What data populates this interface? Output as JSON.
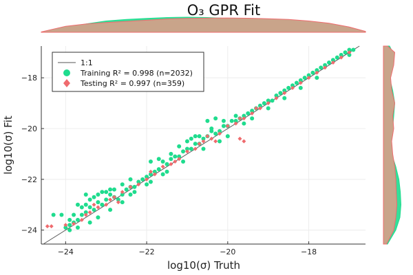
{
  "chart_data": {
    "type": "scatter",
    "title": "O₃ GPR Fit",
    "xlabel": "log10(σ) Truth",
    "ylabel": "log10(σ) Fit",
    "xlim": [
      -24.6,
      -16.6
    ],
    "ylim": [
      -24.55,
      -16.75
    ],
    "xticks": [
      -24,
      -22,
      -20,
      -18
    ],
    "yticks": [
      -24,
      -22,
      -20,
      -18
    ],
    "xtick_labels": [
      "−24",
      "−22",
      "−20",
      "−18"
    ],
    "ytick_labels": [
      "−24",
      "−22",
      "−20",
      "−18"
    ],
    "grid": true,
    "legend_position": "top-left",
    "legend": {
      "line_label": "1:1",
      "training_label": "Training  R² = 0.998 (n=2032)",
      "testing_label": "Testing   R² = 0.997 (n=359)"
    },
    "series": [
      {
        "name": "Training",
        "color": "#1fdc8e",
        "marker": "circle",
        "points": [
          [
            -24.0,
            -23.9
          ],
          [
            -23.9,
            -23.8
          ],
          [
            -23.8,
            -23.7
          ],
          [
            -23.7,
            -23.6
          ],
          [
            -23.6,
            -23.4
          ],
          [
            -23.5,
            -23.3
          ],
          [
            -23.4,
            -23.1
          ],
          [
            -23.3,
            -23.2
          ],
          [
            -23.2,
            -22.9
          ],
          [
            -23.1,
            -23.0
          ],
          [
            -23.0,
            -22.8
          ],
          [
            -22.9,
            -22.6
          ],
          [
            -22.8,
            -22.7
          ],
          [
            -22.7,
            -22.8
          ],
          [
            -22.6,
            -22.6
          ],
          [
            -22.5,
            -22.4
          ],
          [
            -22.4,
            -22.3
          ],
          [
            -22.3,
            -22.3
          ],
          [
            -22.2,
            -22.1
          ],
          [
            -22.1,
            -22.0
          ],
          [
            -22.0,
            -21.9
          ],
          [
            -21.9,
            -21.8
          ],
          [
            -21.8,
            -21.7
          ],
          [
            -21.7,
            -21.6
          ],
          [
            -21.6,
            -21.3
          ],
          [
            -21.5,
            -21.4
          ],
          [
            -21.4,
            -21.2
          ],
          [
            -21.3,
            -21.1
          ],
          [
            -21.2,
            -21.1
          ],
          [
            -21.1,
            -20.9
          ],
          [
            -21.0,
            -20.8
          ],
          [
            -20.9,
            -20.8
          ],
          [
            -20.8,
            -20.6
          ],
          [
            -20.7,
            -20.6
          ],
          [
            -20.6,
            -20.4
          ],
          [
            -20.5,
            -20.3
          ],
          [
            -20.4,
            -20.1
          ],
          [
            -20.3,
            -20.2
          ],
          [
            -20.2,
            -20.1
          ],
          [
            -20.1,
            -19.9
          ],
          [
            -20.0,
            -19.9
          ],
          [
            -19.9,
            -19.7
          ],
          [
            -19.8,
            -19.7
          ],
          [
            -19.7,
            -19.6
          ],
          [
            -19.6,
            -19.5
          ],
          [
            -19.5,
            -19.4
          ],
          [
            -19.4,
            -19.3
          ],
          [
            -19.3,
            -19.2
          ],
          [
            -19.2,
            -19.1
          ],
          [
            -19.1,
            -19.0
          ],
          [
            -19.0,
            -18.9
          ],
          [
            -18.9,
            -18.9
          ],
          [
            -18.8,
            -18.7
          ],
          [
            -18.7,
            -18.6
          ],
          [
            -18.6,
            -18.5
          ],
          [
            -18.5,
            -18.4
          ],
          [
            -18.4,
            -18.3
          ],
          [
            -18.3,
            -18.2
          ],
          [
            -18.2,
            -18.1
          ],
          [
            -18.1,
            -18.0
          ],
          [
            -18.0,
            -17.9
          ],
          [
            -17.9,
            -17.8
          ],
          [
            -17.8,
            -17.7
          ],
          [
            -17.7,
            -17.6
          ],
          [
            -17.6,
            -17.5
          ],
          [
            -17.5,
            -17.4
          ],
          [
            -17.4,
            -17.3
          ],
          [
            -17.3,
            -17.2
          ],
          [
            -17.2,
            -17.1
          ],
          [
            -17.1,
            -17.0
          ],
          [
            -17.0,
            -16.9
          ],
          [
            -16.9,
            -16.9
          ],
          [
            -24.1,
            -23.4
          ],
          [
            -23.9,
            -23.6
          ],
          [
            -23.8,
            -23.4
          ],
          [
            -23.6,
            -23.1
          ],
          [
            -23.5,
            -23.0
          ],
          [
            -23.3,
            -22.7
          ],
          [
            -23.2,
            -22.6
          ],
          [
            -23.0,
            -22.5
          ],
          [
            -22.8,
            -22.4
          ],
          [
            -22.6,
            -22.2
          ],
          [
            -22.4,
            -22.0
          ],
          [
            -21.9,
            -21.3
          ],
          [
            -21.4,
            -21.0
          ],
          [
            -21.0,
            -20.5
          ],
          [
            -20.8,
            -20.3
          ],
          [
            -20.5,
            -19.7
          ],
          [
            -20.3,
            -19.6
          ],
          [
            -20.1,
            -19.7
          ],
          [
            -19.8,
            -19.5
          ],
          [
            -23.9,
            -24.0
          ],
          [
            -23.7,
            -23.9
          ],
          [
            -23.4,
            -23.7
          ],
          [
            -23.2,
            -23.5
          ],
          [
            -22.9,
            -23.2
          ],
          [
            -22.6,
            -22.9
          ],
          [
            -22.3,
            -22.5
          ],
          [
            -21.9,
            -22.1
          ],
          [
            -21.6,
            -21.8
          ],
          [
            -21.1,
            -21.3
          ],
          [
            -20.6,
            -20.8
          ],
          [
            -20.0,
            -20.3
          ],
          [
            -19.6,
            -19.8
          ],
          [
            -19.0,
            -19.2
          ],
          [
            -18.2,
            -18.4
          ],
          [
            -23.7,
            -23.0
          ],
          [
            -23.4,
            -22.8
          ],
          [
            -23.1,
            -22.5
          ],
          [
            -22.9,
            -22.4
          ],
          [
            -21.7,
            -21.2
          ],
          [
            -21.2,
            -20.7
          ],
          [
            -20.9,
            -20.4
          ],
          [
            -20.7,
            -20.3
          ],
          [
            -20.4,
            -20.0
          ],
          [
            -24.3,
            -23.4
          ],
          [
            -23.5,
            -22.6
          ],
          [
            -22.4,
            -22.6
          ],
          [
            -22.0,
            -22.2
          ],
          [
            -21.5,
            -21.7
          ],
          [
            -20.2,
            -20.5
          ],
          [
            -19.4,
            -19.6
          ],
          [
            -18.6,
            -18.8
          ],
          [
            -17.8,
            -18.0
          ],
          [
            -17.0,
            -17.1
          ]
        ]
      },
      {
        "name": "Testing",
        "color": "#ef6b6e",
        "marker": "diamond",
        "points": [
          [
            -24.45,
            -23.85
          ],
          [
            -24.35,
            -23.85
          ],
          [
            -24.0,
            -23.8
          ],
          [
            -23.8,
            -23.75
          ],
          [
            -23.6,
            -23.6
          ],
          [
            -23.4,
            -23.3
          ],
          [
            -23.2,
            -23.1
          ],
          [
            -23.0,
            -23.0
          ],
          [
            -22.8,
            -22.7
          ],
          [
            -22.6,
            -22.5
          ],
          [
            -22.4,
            -22.3
          ],
          [
            -22.2,
            -22.2
          ],
          [
            -22.0,
            -22.0
          ],
          [
            -21.8,
            -21.8
          ],
          [
            -21.6,
            -21.5
          ],
          [
            -21.4,
            -21.4
          ],
          [
            -21.2,
            -21.2
          ],
          [
            -21.0,
            -20.9
          ],
          [
            -20.8,
            -20.8
          ],
          [
            -20.6,
            -20.5
          ],
          [
            -20.4,
            -20.4
          ],
          [
            -20.2,
            -20.2
          ],
          [
            -20.0,
            -19.9
          ],
          [
            -19.8,
            -19.8
          ],
          [
            -19.6,
            -19.6
          ],
          [
            -19.4,
            -19.4
          ],
          [
            -19.2,
            -19.2
          ],
          [
            -19.0,
            -19.0
          ],
          [
            -18.8,
            -18.8
          ],
          [
            -18.6,
            -18.6
          ],
          [
            -18.4,
            -18.4
          ],
          [
            -18.2,
            -18.2
          ],
          [
            -18.0,
            -18.0
          ],
          [
            -17.8,
            -17.8
          ],
          [
            -17.6,
            -17.6
          ],
          [
            -17.4,
            -17.4
          ],
          [
            -17.2,
            -17.2
          ],
          [
            -17.0,
            -17.0
          ],
          [
            -23.5,
            -23.4
          ],
          [
            -23.3,
            -23.0
          ],
          [
            -22.9,
            -22.8
          ],
          [
            -22.7,
            -22.9
          ],
          [
            -21.9,
            -21.7
          ],
          [
            -21.3,
            -21.3
          ],
          [
            -20.7,
            -20.6
          ],
          [
            -20.5,
            -20.3
          ],
          [
            -20.3,
            -20.5
          ],
          [
            -19.7,
            -19.6
          ],
          [
            -19.3,
            -19.2
          ],
          [
            -19.7,
            -20.4
          ],
          [
            -19.6,
            -20.5
          ]
        ]
      }
    ],
    "marginal_top": {
      "x": [
        -24.6,
        -24.0,
        -23.5,
        -23.0,
        -22.5,
        -22.0,
        -21.5,
        -21.0,
        -20.5,
        -20.0,
        -19.5,
        -19.0,
        -18.5,
        -18.0,
        -17.5,
        -17.0,
        -16.6
      ],
      "training": [
        0.02,
        0.3,
        0.55,
        0.75,
        0.85,
        0.92,
        0.98,
        1.0,
        0.98,
        0.92,
        0.88,
        0.82,
        0.75,
        0.65,
        0.5,
        0.3,
        0.05
      ],
      "testing": [
        0.03,
        0.4,
        0.55,
        0.65,
        0.72,
        0.8,
        0.88,
        0.92,
        0.94,
        0.95,
        0.93,
        0.9,
        0.85,
        0.75,
        0.6,
        0.35,
        0.06
      ]
    },
    "marginal_right": {
      "y": [
        -16.75,
        -17.0,
        -17.5,
        -18.0,
        -18.5,
        -19.0,
        -19.5,
        -20.0,
        -20.5,
        -21.0,
        -21.5,
        -22.0,
        -22.5,
        -23.0,
        -23.5,
        -24.0,
        -24.55
      ],
      "training": [
        0.3,
        0.45,
        0.35,
        0.3,
        0.45,
        0.55,
        0.5,
        0.45,
        0.35,
        0.4,
        0.6,
        0.75,
        0.82,
        0.85,
        0.8,
        0.6,
        0.2
      ],
      "testing": [
        0.2,
        0.55,
        0.5,
        0.35,
        0.4,
        0.55,
        0.45,
        0.5,
        0.4,
        0.45,
        0.55,
        0.6,
        0.62,
        0.65,
        0.6,
        0.5,
        0.15
      ]
    }
  }
}
